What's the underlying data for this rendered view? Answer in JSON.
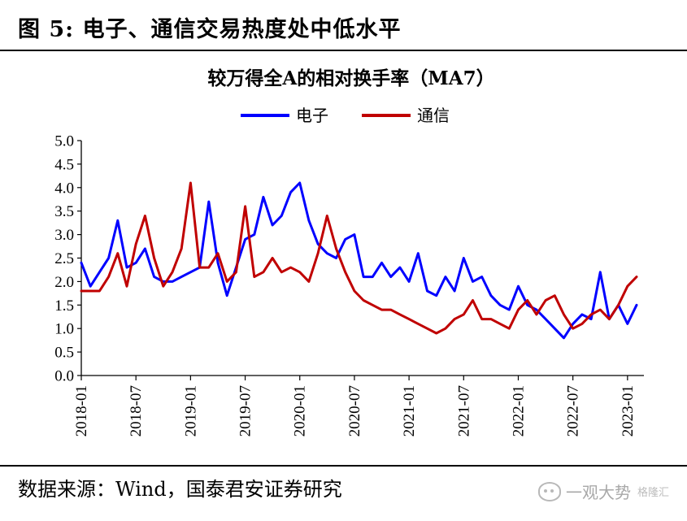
{
  "figure": {
    "title": "图 5:  电子、通信交易热度处中低水平",
    "source": "数据来源：Wind，国泰君安证券研究",
    "watermark": "一观大势",
    "watermark_sub": "格隆汇"
  },
  "chart_data": {
    "type": "line",
    "title": "较万得全A的相对换手率（MA7）",
    "xlabel": "",
    "ylabel": "",
    "ylim": [
      0,
      5
    ],
    "yticks": [
      "0.0",
      "0.5",
      "1.0",
      "1.5",
      "2.0",
      "2.5",
      "3.0",
      "3.5",
      "4.0",
      "4.5",
      "5.0"
    ],
    "xlim": [
      "2018-01",
      "2023-02"
    ],
    "xticks": [
      "2018-01",
      "2018-07",
      "2019-01",
      "2019-07",
      "2020-01",
      "2020-07",
      "2021-01",
      "2021-07",
      "2022-01",
      "2022-07",
      "2023-01"
    ],
    "grid": false,
    "legend_position": "top-center",
    "x": [
      "2018-01",
      "2018-02",
      "2018-03",
      "2018-04",
      "2018-05",
      "2018-06",
      "2018-07",
      "2018-08",
      "2018-09",
      "2018-10",
      "2018-11",
      "2018-12",
      "2019-01",
      "2019-02",
      "2019-03",
      "2019-04",
      "2019-05",
      "2019-06",
      "2019-07",
      "2019-08",
      "2019-09",
      "2019-10",
      "2019-11",
      "2019-12",
      "2020-01",
      "2020-02",
      "2020-03",
      "2020-04",
      "2020-05",
      "2020-06",
      "2020-07",
      "2020-08",
      "2020-09",
      "2020-10",
      "2020-11",
      "2020-12",
      "2021-01",
      "2021-02",
      "2021-03",
      "2021-04",
      "2021-05",
      "2021-06",
      "2021-07",
      "2021-08",
      "2021-09",
      "2021-10",
      "2021-11",
      "2021-12",
      "2022-01",
      "2022-02",
      "2022-03",
      "2022-04",
      "2022-05",
      "2022-06",
      "2022-07",
      "2022-08",
      "2022-09",
      "2022-10",
      "2022-11",
      "2022-12",
      "2023-01",
      "2023-02"
    ],
    "series": [
      {
        "name": "电子",
        "color": "#0000ff",
        "values": [
          2.4,
          1.9,
          2.2,
          2.5,
          3.3,
          2.3,
          2.4,
          2.7,
          2.1,
          2.0,
          2.0,
          2.1,
          2.2,
          2.3,
          3.7,
          2.4,
          1.7,
          2.3,
          2.9,
          3.0,
          3.8,
          3.2,
          3.4,
          3.9,
          4.1,
          3.3,
          2.8,
          2.6,
          2.5,
          2.9,
          3.0,
          2.1,
          2.1,
          2.4,
          2.1,
          2.3,
          2.0,
          2.6,
          1.8,
          1.7,
          2.1,
          1.8,
          2.5,
          2.0,
          2.1,
          1.7,
          1.5,
          1.4,
          1.9,
          1.5,
          1.4,
          1.2,
          1.0,
          0.8,
          1.1,
          1.3,
          1.2,
          2.2,
          1.2,
          1.5,
          1.1,
          1.5
        ]
      },
      {
        "name": "通信",
        "color": "#c00000",
        "values": [
          1.8,
          1.8,
          1.8,
          2.1,
          2.6,
          1.9,
          2.8,
          3.4,
          2.5,
          1.9,
          2.2,
          2.7,
          4.1,
          2.3,
          2.3,
          2.6,
          2.0,
          2.2,
          3.6,
          2.1,
          2.2,
          2.5,
          2.2,
          2.3,
          2.2,
          2.0,
          2.6,
          3.4,
          2.7,
          2.2,
          1.8,
          1.6,
          1.5,
          1.4,
          1.4,
          1.3,
          1.2,
          1.1,
          1.0,
          0.9,
          1.0,
          1.2,
          1.3,
          1.6,
          1.2,
          1.2,
          1.1,
          1.0,
          1.4,
          1.6,
          1.3,
          1.6,
          1.7,
          1.3,
          1.0,
          1.1,
          1.3,
          1.4,
          1.2,
          1.5,
          1.9,
          2.1
        ]
      }
    ]
  }
}
